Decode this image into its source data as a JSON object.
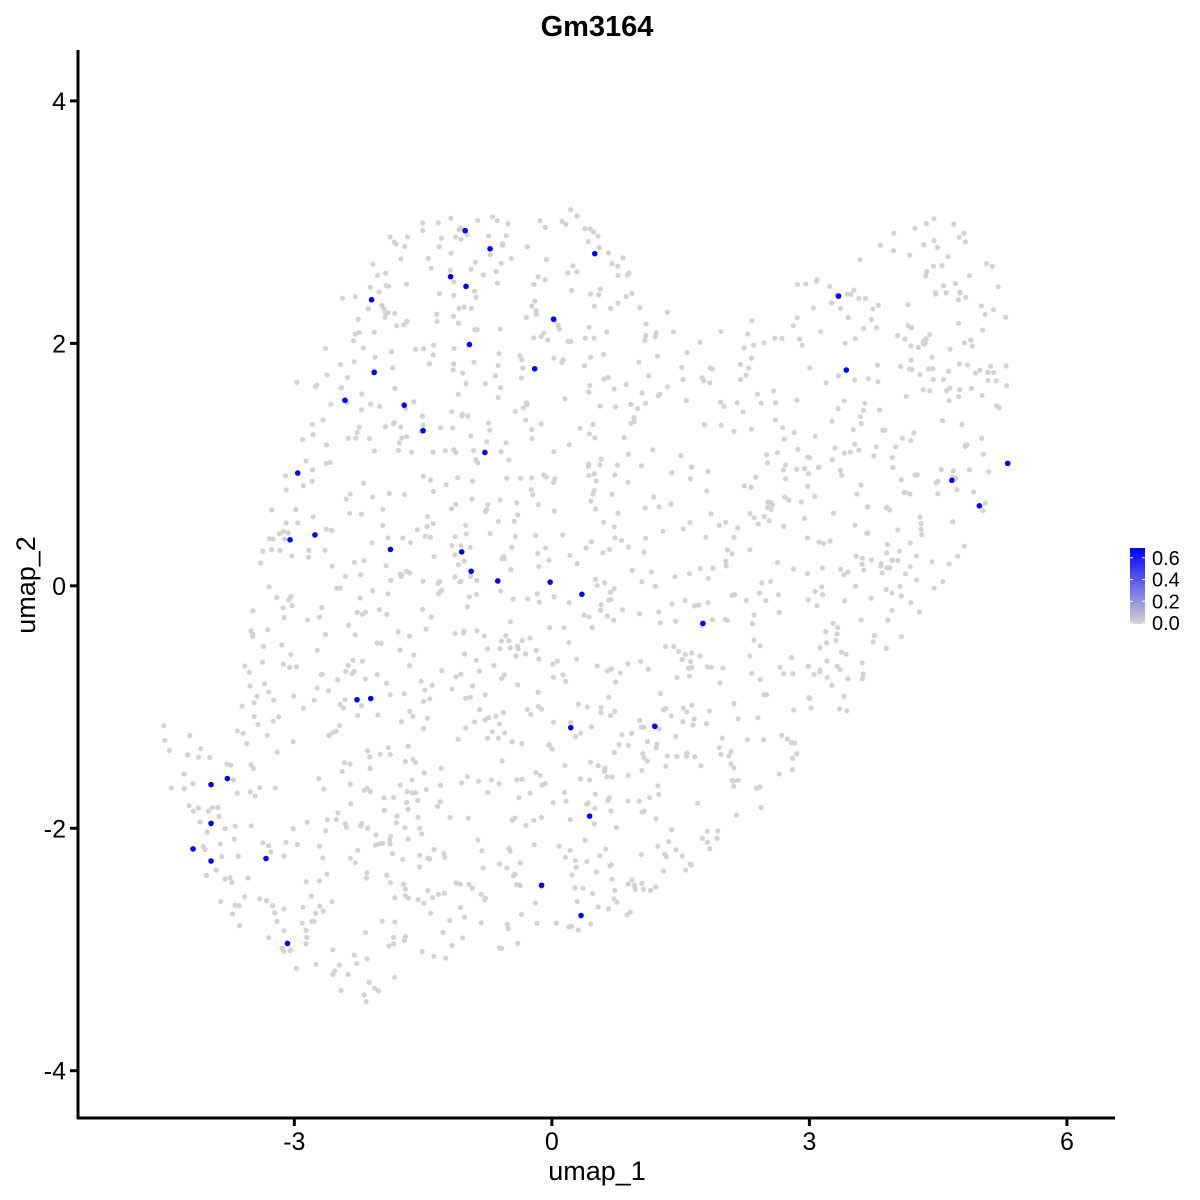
{
  "chart_data": {
    "type": "scatter",
    "title": "Gm3164",
    "xlabel": "umap_1",
    "ylabel": "umap_2",
    "xlim": [
      -5.52,
      6.56
    ],
    "ylim": [
      -4.39,
      4.42
    ],
    "xticks": [
      -3,
      0,
      3,
      6
    ],
    "yticks": [
      -4,
      -2,
      0,
      2,
      4
    ],
    "xtick_labels": [
      "-3",
      "0",
      "3",
      "6"
    ],
    "ytick_labels": [
      "-4",
      "-2",
      "0",
      "2",
      "4"
    ],
    "grid": false,
    "colors": {
      "low": "#d3d3d3",
      "high": "#0000ff"
    },
    "legend": {
      "position": "right",
      "type": "colorbar",
      "range": [
        0,
        0.69
      ],
      "ticks": [
        0.0,
        0.2,
        0.4,
        0.6
      ],
      "tick_labels": [
        "0.0",
        "0.2",
        "0.4",
        "0.6"
      ]
    },
    "expressing_value": 0.69,
    "background_value": 0.0,
    "expressing_points": [
      [
        -1.01,
        2.93
      ],
      [
        -0.72,
        2.78
      ],
      [
        0.5,
        2.74
      ],
      [
        -1.18,
        2.55
      ],
      [
        -1.0,
        2.47
      ],
      [
        -2.1,
        2.36
      ],
      [
        0.02,
        2.2
      ],
      [
        -0.96,
        1.99
      ],
      [
        -0.2,
        1.79
      ],
      [
        -2.07,
        1.76
      ],
      [
        -2.41,
        1.53
      ],
      [
        -1.72,
        1.49
      ],
      [
        -1.5,
        1.28
      ],
      [
        -0.78,
        1.1
      ],
      [
        -2.96,
        0.93
      ],
      [
        -3.05,
        0.38
      ],
      [
        -2.76,
        0.42
      ],
      [
        -1.88,
        0.3
      ],
      [
        -1.05,
        0.28
      ],
      [
        -0.94,
        0.12
      ],
      [
        -0.63,
        0.04
      ],
      [
        -0.02,
        0.03
      ],
      [
        0.35,
        -0.07
      ],
      [
        1.76,
        -0.31
      ],
      [
        -2.27,
        -0.94
      ],
      [
        -2.11,
        -0.93
      ],
      [
        0.22,
        -1.17
      ],
      [
        1.2,
        -1.16
      ],
      [
        -3.97,
        -1.64
      ],
      [
        -3.78,
        -1.59
      ],
      [
        -3.97,
        -1.96
      ],
      [
        -4.18,
        -2.17
      ],
      [
        -3.97,
        -2.27
      ],
      [
        -3.33,
        -2.25
      ],
      [
        0.44,
        -1.9
      ],
      [
        -0.12,
        -2.47
      ],
      [
        0.34,
        -2.72
      ],
      [
        -3.08,
        -2.95
      ],
      [
        3.34,
        2.39
      ],
      [
        3.43,
        1.78
      ],
      [
        4.66,
        0.87
      ],
      [
        5.31,
        1.01
      ],
      [
        4.98,
        0.66
      ]
    ]
  }
}
